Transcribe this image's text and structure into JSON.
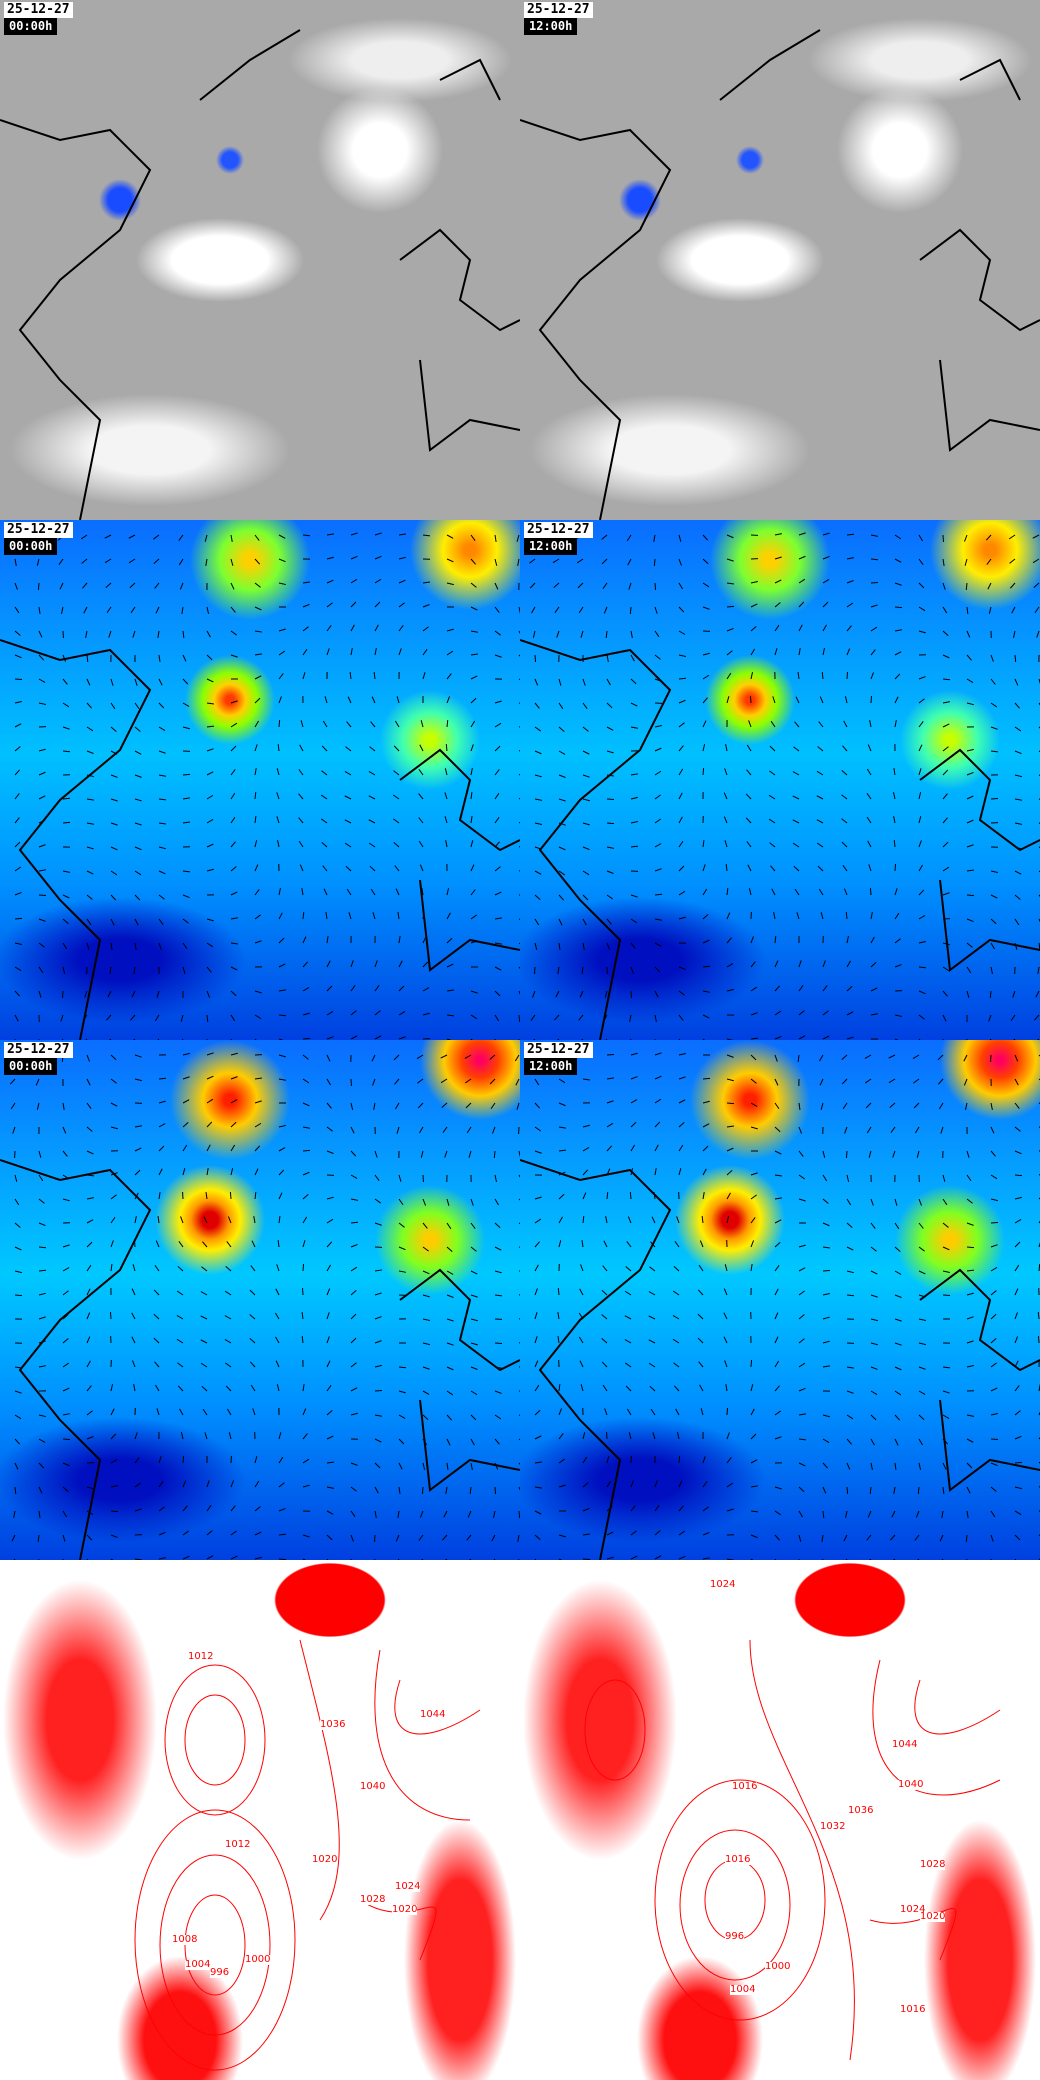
{
  "panels": [
    {
      "type": "satellite",
      "date": "25-12-27",
      "time": "00:00h"
    },
    {
      "type": "satellite",
      "date": "25-12-27",
      "time": "12:00h"
    },
    {
      "type": "wind",
      "date": "25-12-27",
      "time": "00:00h"
    },
    {
      "type": "wind",
      "date": "25-12-27",
      "time": "12:00h"
    },
    {
      "type": "wind-gust",
      "date": "25-12-27",
      "time": "00:00h"
    },
    {
      "type": "wind-gust",
      "date": "25-12-27",
      "time": "12:00h"
    },
    {
      "type": "pressure",
      "isobar_labels": [
        "1012",
        "1012",
        "1036",
        "1044",
        "1040",
        "1028",
        "1024",
        "1020",
        "1008",
        "1004",
        "996",
        "1000",
        "1020"
      ]
    },
    {
      "type": "pressure",
      "isobar_labels": [
        "1024",
        "1016",
        "1044",
        "1040",
        "1036",
        "1032",
        "1028",
        "1024",
        "1020",
        "996",
        "1000",
        "1004",
        "1016",
        "1016"
      ]
    }
  ],
  "colors": {
    "isobar": "#ff0000",
    "coast": "#000000",
    "label_bg": "#000000",
    "label_text": "#ffffff"
  }
}
